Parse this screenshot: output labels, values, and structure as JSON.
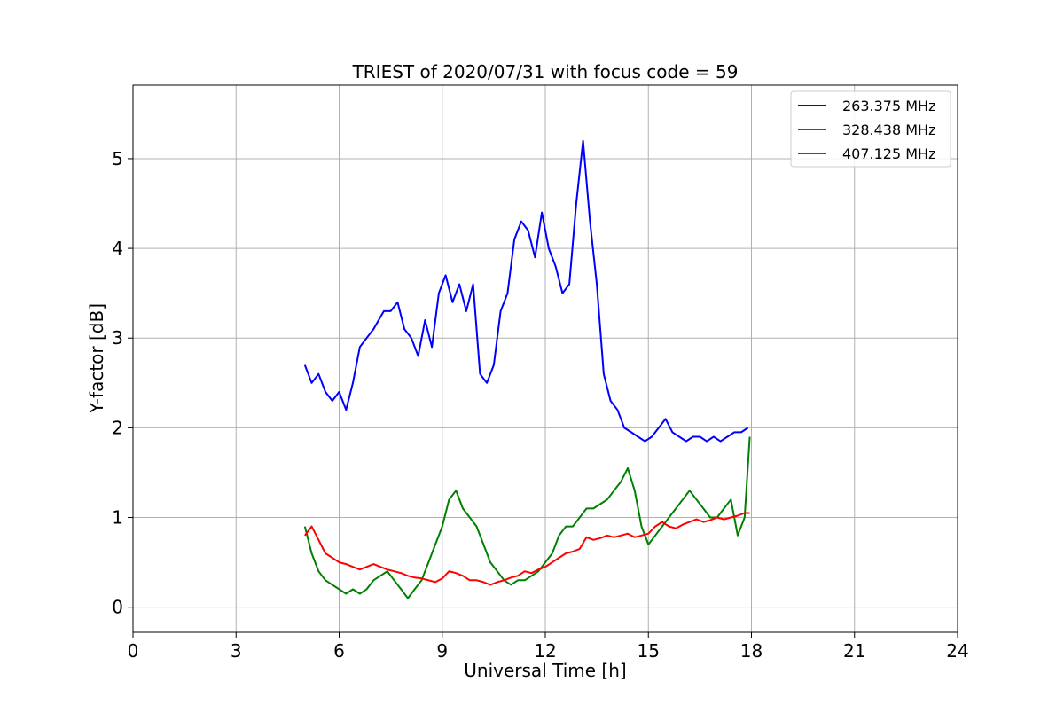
{
  "chart_data": {
    "type": "line",
    "title": "TRIEST of 2020/07/31 with focus code = 59",
    "xlabel": "Universal Time [h]",
    "ylabel": "Y-factor [dB]",
    "xlim": [
      0,
      24
    ],
    "ylim": [
      -0.28,
      5.82
    ],
    "xticks": [
      0,
      3,
      6,
      9,
      12,
      15,
      18,
      21,
      24
    ],
    "yticks": [
      0,
      1,
      2,
      3,
      4,
      5
    ],
    "grid": true,
    "legend_position": "top-right",
    "series": [
      {
        "name": "263.375 MHz",
        "color": "#0000ff",
        "x": [
          5.0,
          5.2,
          5.4,
          5.6,
          5.8,
          6.0,
          6.2,
          6.4,
          6.6,
          6.8,
          7.0,
          7.15,
          7.3,
          7.5,
          7.7,
          7.9,
          8.1,
          8.3,
          8.5,
          8.7,
          8.9,
          9.1,
          9.3,
          9.5,
          9.7,
          9.9,
          10.1,
          10.3,
          10.5,
          10.7,
          10.9,
          11.1,
          11.3,
          11.5,
          11.7,
          11.9,
          12.1,
          12.3,
          12.5,
          12.7,
          12.9,
          13.1,
          13.3,
          13.5,
          13.7,
          13.9,
          14.1,
          14.3,
          14.5,
          14.7,
          14.9,
          15.1,
          15.3,
          15.5,
          15.7,
          15.9,
          16.1,
          16.3,
          16.5,
          16.7,
          16.9,
          17.1,
          17.3,
          17.5,
          17.7,
          17.9
        ],
        "y": [
          2.7,
          2.5,
          2.6,
          2.4,
          2.3,
          2.4,
          2.2,
          2.5,
          2.9,
          3.0,
          3.1,
          3.2,
          3.3,
          3.3,
          3.4,
          3.1,
          3.0,
          2.8,
          3.2,
          2.9,
          3.5,
          3.7,
          3.4,
          3.6,
          3.3,
          3.6,
          2.6,
          2.5,
          2.7,
          3.3,
          3.5,
          4.1,
          4.3,
          4.2,
          3.9,
          4.4,
          4.0,
          3.8,
          3.5,
          3.6,
          4.5,
          5.2,
          4.3,
          3.6,
          2.6,
          2.3,
          2.2,
          2.0,
          1.95,
          1.9,
          1.85,
          1.9,
          2.0,
          2.1,
          1.95,
          1.9,
          1.85,
          1.9,
          1.9,
          1.85,
          1.9,
          1.85,
          1.9,
          1.95,
          1.95,
          2.0
        ]
      },
      {
        "name": "328.438 MHz",
        "color": "#008000",
        "x": [
          5.0,
          5.2,
          5.4,
          5.6,
          5.8,
          6.0,
          6.2,
          6.4,
          6.6,
          6.8,
          7.0,
          7.2,
          7.4,
          7.6,
          7.8,
          8.0,
          8.2,
          8.4,
          8.6,
          8.8,
          9.0,
          9.2,
          9.4,
          9.6,
          9.8,
          10.0,
          10.2,
          10.4,
          10.6,
          10.8,
          11.0,
          11.2,
          11.4,
          11.6,
          11.8,
          12.0,
          12.2,
          12.4,
          12.6,
          12.8,
          13.0,
          13.2,
          13.4,
          13.6,
          13.8,
          14.0,
          14.2,
          14.4,
          14.6,
          14.8,
          15.0,
          15.2,
          15.4,
          15.6,
          15.8,
          16.0,
          16.2,
          16.4,
          16.6,
          16.8,
          17.0,
          17.2,
          17.4,
          17.6,
          17.8,
          17.95
        ],
        "y": [
          0.9,
          0.6,
          0.4,
          0.3,
          0.25,
          0.2,
          0.15,
          0.2,
          0.15,
          0.2,
          0.3,
          0.35,
          0.4,
          0.3,
          0.2,
          0.1,
          0.2,
          0.3,
          0.5,
          0.7,
          0.9,
          1.2,
          1.3,
          1.1,
          1.0,
          0.9,
          0.7,
          0.5,
          0.4,
          0.3,
          0.25,
          0.3,
          0.3,
          0.35,
          0.4,
          0.5,
          0.6,
          0.8,
          0.9,
          0.9,
          1.0,
          1.1,
          1.1,
          1.15,
          1.2,
          1.3,
          1.4,
          1.55,
          1.3,
          0.9,
          0.7,
          0.8,
          0.9,
          1.0,
          1.1,
          1.2,
          1.3,
          1.2,
          1.1,
          1.0,
          1.0,
          1.1,
          1.2,
          0.8,
          1.0,
          1.9
        ]
      },
      {
        "name": "407.125 MHz",
        "color": "#ff0000",
        "x": [
          5.0,
          5.2,
          5.4,
          5.6,
          5.8,
          6.0,
          6.2,
          6.4,
          6.6,
          6.8,
          7.0,
          7.2,
          7.4,
          7.6,
          7.8,
          8.0,
          8.2,
          8.4,
          8.6,
          8.8,
          9.0,
          9.2,
          9.4,
          9.6,
          9.8,
          10.0,
          10.2,
          10.4,
          10.6,
          10.8,
          11.0,
          11.2,
          11.4,
          11.6,
          11.8,
          12.0,
          12.2,
          12.4,
          12.6,
          12.8,
          13.0,
          13.2,
          13.4,
          13.6,
          13.8,
          14.0,
          14.2,
          14.4,
          14.6,
          14.8,
          15.0,
          15.2,
          15.4,
          15.6,
          15.8,
          16.0,
          16.2,
          16.4,
          16.6,
          16.8,
          17.0,
          17.2,
          17.4,
          17.6,
          17.8,
          17.95
        ],
        "y": [
          0.8,
          0.9,
          0.75,
          0.6,
          0.55,
          0.5,
          0.48,
          0.45,
          0.42,
          0.45,
          0.48,
          0.45,
          0.42,
          0.4,
          0.38,
          0.35,
          0.33,
          0.32,
          0.3,
          0.28,
          0.32,
          0.4,
          0.38,
          0.35,
          0.3,
          0.3,
          0.28,
          0.25,
          0.28,
          0.3,
          0.33,
          0.35,
          0.4,
          0.38,
          0.42,
          0.45,
          0.5,
          0.55,
          0.6,
          0.62,
          0.65,
          0.78,
          0.75,
          0.77,
          0.8,
          0.78,
          0.8,
          0.82,
          0.78,
          0.8,
          0.82,
          0.9,
          0.95,
          0.9,
          0.88,
          0.92,
          0.95,
          0.98,
          0.95,
          0.97,
          1.0,
          0.98,
          1.0,
          1.02,
          1.05,
          1.05
        ]
      }
    ]
  }
}
